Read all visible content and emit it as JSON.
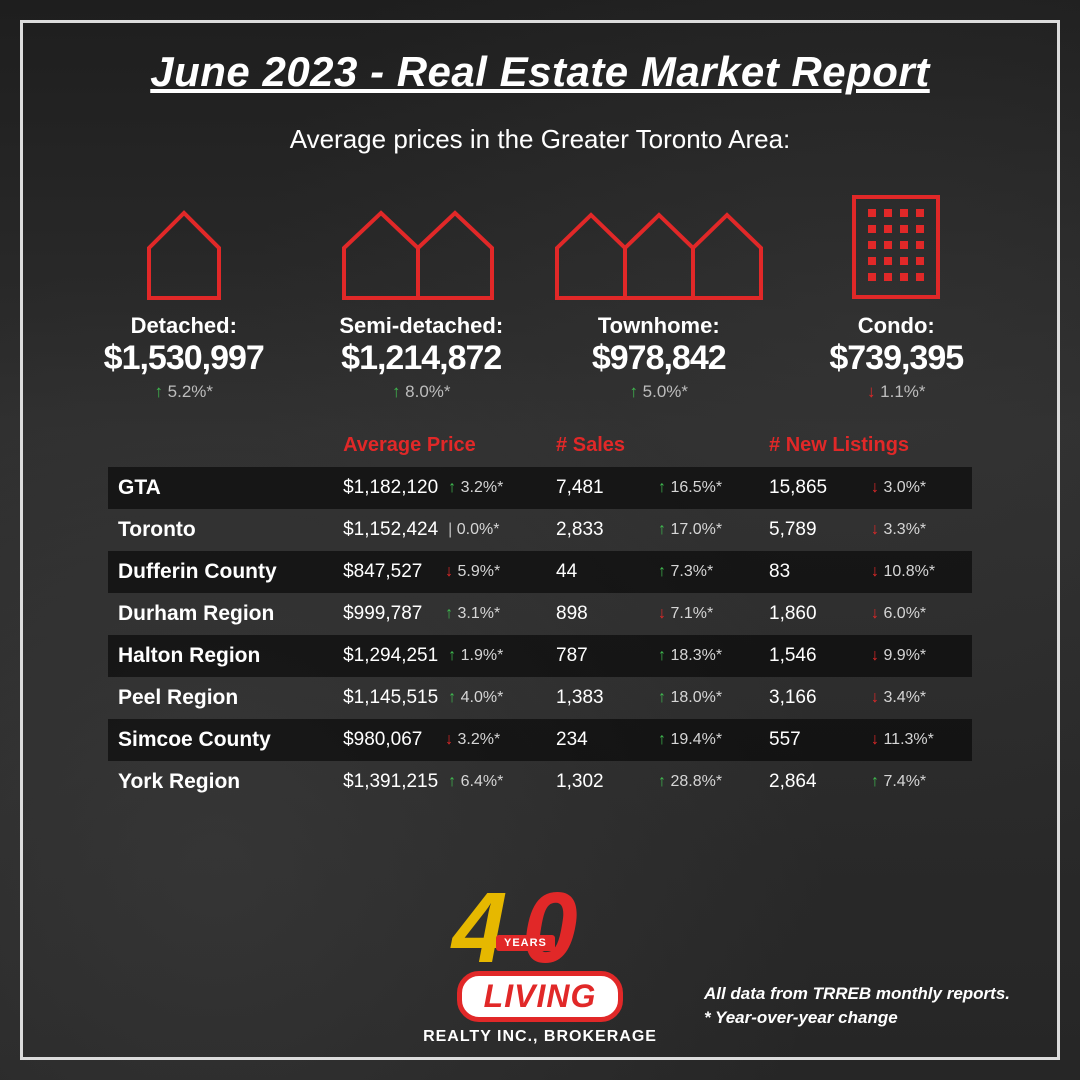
{
  "colors": {
    "accent_red": "#e12828",
    "accent_green": "#3fb94f",
    "accent_gold": "#e6b800",
    "text_white": "#ffffff",
    "frame": "#dcdcdc",
    "row_alt_bg": "rgba(0,0,0,0.55)",
    "background": "#2a2a2a"
  },
  "header": {
    "title": "June 2023 - Real Estate Market Report",
    "subtitle": "Average prices in the Greater Toronto Area:"
  },
  "cards": [
    {
      "icon": "house-single",
      "label": "Detached:",
      "price": "$1,530,997",
      "change": "5.2%*",
      "dir": "up"
    },
    {
      "icon": "house-double",
      "label": "Semi-detached:",
      "price": "$1,214,872",
      "change": "8.0%*",
      "dir": "up"
    },
    {
      "icon": "house-triple",
      "label": "Townhome:",
      "price": "$978,842",
      "change": "5.0%*",
      "dir": "up"
    },
    {
      "icon": "condo-grid",
      "label": "Condo:",
      "price": "$739,395",
      "change": "1.1%*",
      "dir": "down"
    }
  ],
  "table": {
    "headers": [
      "",
      "Average Price",
      "# Sales",
      "# New Listings"
    ],
    "rows": [
      {
        "region": "GTA",
        "price": "$1,182,120",
        "price_chg": "3.2%*",
        "price_dir": "up",
        "sales": "7,481",
        "sales_chg": "16.5%*",
        "sales_dir": "up",
        "list": "15,865",
        "list_chg": "3.0%*",
        "list_dir": "down"
      },
      {
        "region": "Toronto",
        "price": "$1,152,424",
        "price_chg": "0.0%*",
        "price_dir": "flat",
        "sales": "2,833",
        "sales_chg": "17.0%*",
        "sales_dir": "up",
        "list": "5,789",
        "list_chg": "3.3%*",
        "list_dir": "down"
      },
      {
        "region": "Dufferin County",
        "price": "$847,527",
        "price_chg": "5.9%*",
        "price_dir": "down",
        "sales": "44",
        "sales_chg": "7.3%*",
        "sales_dir": "up",
        "list": "83",
        "list_chg": "10.8%*",
        "list_dir": "down"
      },
      {
        "region": "Durham Region",
        "price": "$999,787",
        "price_chg": "3.1%*",
        "price_dir": "up",
        "sales": "898",
        "sales_chg": "7.1%*",
        "sales_dir": "down",
        "list": "1,860",
        "list_chg": "6.0%*",
        "list_dir": "down"
      },
      {
        "region": "Halton Region",
        "price": "$1,294,251",
        "price_chg": "1.9%*",
        "price_dir": "up",
        "sales": "787",
        "sales_chg": "18.3%*",
        "sales_dir": "up",
        "list": "1,546",
        "list_chg": "9.9%*",
        "list_dir": "down"
      },
      {
        "region": "Peel Region",
        "price": "$1,145,515",
        "price_chg": "4.0%*",
        "price_dir": "up",
        "sales": "1,383",
        "sales_chg": "18.0%*",
        "sales_dir": "up",
        "list": "3,166",
        "list_chg": "3.4%*",
        "list_dir": "down"
      },
      {
        "region": "Simcoe County",
        "price": "$980,067",
        "price_chg": "3.2%*",
        "price_dir": "down",
        "sales": "234",
        "sales_chg": "19.4%*",
        "sales_dir": "up",
        "list": "557",
        "list_chg": "11.3%*",
        "list_dir": "down"
      },
      {
        "region": "York Region",
        "price": "$1,391,215",
        "price_chg": "6.4%*",
        "price_dir": "up",
        "sales": "1,302",
        "sales_chg": "28.8%*",
        "sales_dir": "up",
        "list": "2,864",
        "list_chg": "7.4%*",
        "list_dir": "up"
      }
    ]
  },
  "logo": {
    "years_label": "YEARS",
    "brand": "LIVING",
    "tagline": "REALTY INC., BROKERAGE"
  },
  "footnotes": {
    "line1": "All data from TRREB monthly reports.",
    "line2": "* Year-over-year change"
  }
}
